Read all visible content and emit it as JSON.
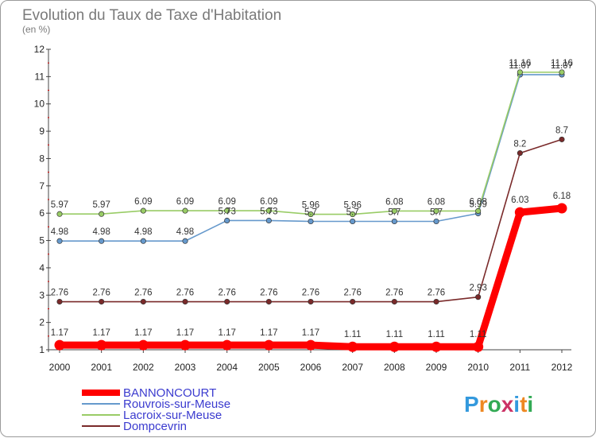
{
  "chart_data": {
    "type": "line",
    "title": "Evolution du Taux de Taxe d'Habitation",
    "subtitle": "(en %)",
    "x": [
      "2000",
      "2001",
      "2002",
      "2003",
      "2004",
      "2005",
      "2006",
      "2007",
      "2008",
      "2009",
      "2010",
      "2011",
      "2012"
    ],
    "yticks": [
      "1",
      "2",
      "3",
      "4",
      "5",
      "6",
      "7",
      "8",
      "9",
      "10",
      "11",
      "12"
    ],
    "ylim": [
      1,
      12
    ],
    "grid": false,
    "legend_position": "bottom-left",
    "series": [
      {
        "name": "BANNONCOURT",
        "color": "#ff0000",
        "values": [
          1.17,
          1.17,
          1.17,
          1.17,
          1.17,
          1.17,
          1.17,
          1.11,
          1.11,
          1.11,
          1.11,
          6.03,
          6.18
        ],
        "labels": [
          "1.17",
          "1.17",
          "1.17",
          "1.17",
          "1.17",
          "1.17",
          "1.17",
          "1.11",
          "1.11",
          "1.11",
          "1.11",
          "6.03",
          "6.18"
        ]
      },
      {
        "name": "Rouvrois-sur-Meuse",
        "color": "#6699cc",
        "values": [
          4.98,
          4.98,
          4.98,
          4.98,
          5.73,
          5.73,
          5.7,
          5.7,
          5.7,
          5.7,
          5.99,
          11.07,
          11.07
        ],
        "labels": [
          "4.98",
          "4.98",
          "4.98",
          "4.98",
          "5.73",
          "5.73",
          "5.7",
          "5.7",
          "5.7",
          "5.7",
          "5.99",
          "11.07",
          "11.07"
        ]
      },
      {
        "name": "Lacroix-sur-Meuse",
        "color": "#99cc66",
        "values": [
          5.97,
          5.97,
          6.09,
          6.09,
          6.09,
          6.09,
          5.96,
          5.96,
          6.08,
          6.08,
          6.08,
          11.16,
          11.16
        ],
        "labels": [
          "5.97",
          "5.97",
          "6.09",
          "6.09",
          "6.09",
          "6.09",
          "5.96",
          "5.96",
          "6.08",
          "6.08",
          "6.08",
          "11.16",
          "11.16"
        ]
      },
      {
        "name": "Dompcevrin",
        "color": "#7a2a2a",
        "values": [
          2.76,
          2.76,
          2.76,
          2.76,
          2.76,
          2.76,
          2.76,
          2.76,
          2.76,
          2.76,
          2.93,
          8.2,
          8.7
        ],
        "labels": [
          "2.76",
          "2.76",
          "2.76",
          "2.76",
          "2.76",
          "2.76",
          "2.76",
          "2.76",
          "2.76",
          "2.76",
          "2.93",
          "8.2",
          "8.7"
        ]
      }
    ]
  },
  "logo": {
    "text": "Proxiti",
    "letter_colors": [
      "#3399dd",
      "#ee8822",
      "#33aa55",
      "#cc3366",
      "#3399dd",
      "#ee8822",
      "#33aa55"
    ]
  }
}
